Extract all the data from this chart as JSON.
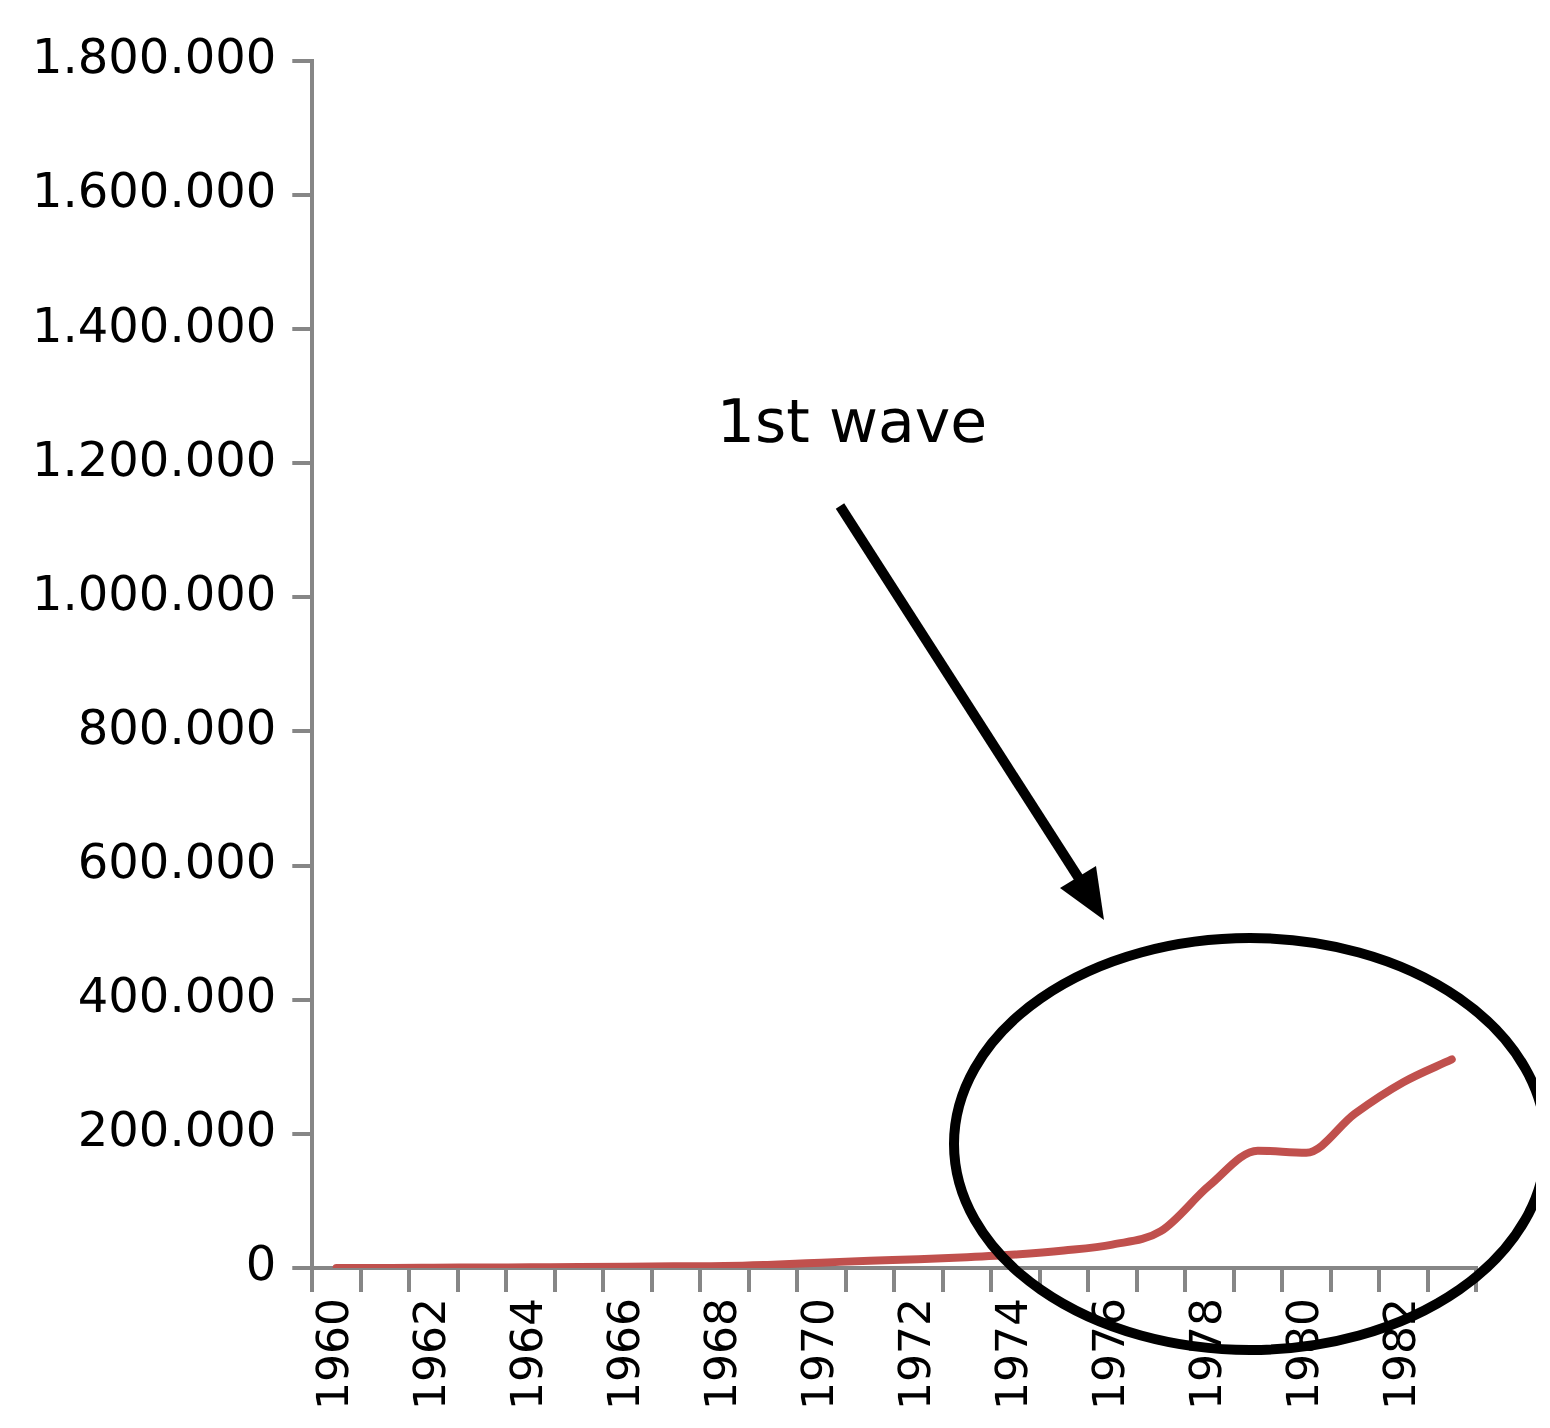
{
  "chart_data": {
    "type": "line",
    "categories": [
      "1960",
      null,
      "1962",
      null,
      "1964",
      null,
      "1966",
      null,
      "1968",
      null,
      "1970",
      null,
      "1972",
      null,
      "1974",
      null,
      "1976",
      null,
      "1978",
      null,
      "1980",
      null,
      "1982",
      null
    ],
    "series": [
      {
        "color": "#c0504d",
        "values": [
          0,
          0,
          500,
          800,
          1000,
          1500,
          2000,
          2500,
          3000,
          5000,
          8000,
          11000,
          13000,
          16000,
          20000,
          26000,
          35000,
          55000,
          123000,
          175000,
          172000,
          230000,
          277000,
          311000
        ]
      }
    ],
    "ylim": [
      0,
      1800000
    ],
    "yticks": [
      {
        "value": 0,
        "label": "0"
      },
      {
        "value": 200000,
        "label": "200.000"
      },
      {
        "value": 400000,
        "label": "400.000"
      },
      {
        "value": 600000,
        "label": "600.000"
      },
      {
        "value": 800000,
        "label": "800.000"
      },
      {
        "value": 1000000,
        "label": "1.000.000"
      },
      {
        "value": 1200000,
        "label": "1.200.000"
      },
      {
        "value": 1400000,
        "label": "1.400.000"
      },
      {
        "value": 1600000,
        "label": "1.600.000"
      },
      {
        "value": 1800000,
        "label": "1.800.000"
      }
    ],
    "grid": false,
    "legend": false,
    "marker": "none",
    "line_style": "solid",
    "annotations": [
      "1st wave"
    ]
  }
}
